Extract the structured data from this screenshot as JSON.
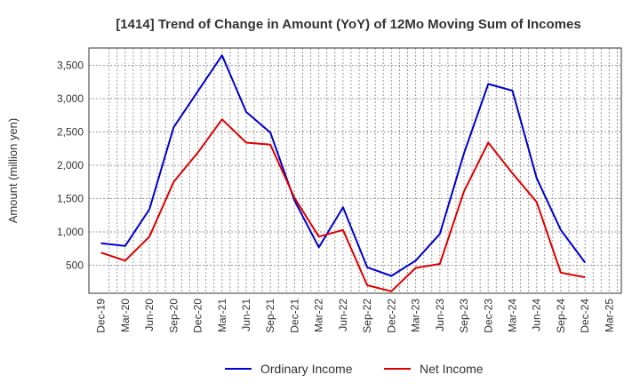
{
  "chart_data": {
    "type": "line",
    "title": "[1414]  Trend of Change in Amount (YoY) of 12Mo Moving Sum of Incomes",
    "xlabel": "",
    "ylabel": "Amount (million yen)",
    "categories": [
      "Dec-19",
      "Mar-20",
      "Jun-20",
      "Sep-20",
      "Dec-20",
      "Mar-21",
      "Jun-21",
      "Sep-21",
      "Dec-21",
      "Mar-22",
      "Jun-22",
      "Sep-22",
      "Dec-22",
      "Mar-23",
      "Jun-23",
      "Sep-23",
      "Dec-23",
      "Mar-24",
      "Jun-24",
      "Sep-24",
      "Dec-24",
      "Mar-25"
    ],
    "yticks": [
      500,
      1000,
      1500,
      2000,
      2500,
      3000,
      3500
    ],
    "ytick_labels": [
      "500",
      "1,000",
      "1,500",
      "2,000",
      "2,500",
      "3,000",
      "3,500"
    ],
    "ylim": [
      80,
      3760
    ],
    "series": [
      {
        "name": "Ordinary Income",
        "color": "#0000cc",
        "values": [
          830,
          790,
          1340,
          2570,
          3110,
          3650,
          2800,
          2490,
          1470,
          770,
          1370,
          470,
          340,
          570,
          970,
          2180,
          3220,
          3120,
          1810,
          1030,
          540,
          null
        ]
      },
      {
        "name": "Net Income",
        "color": "#dd0000",
        "values": [
          690,
          570,
          930,
          1750,
          2190,
          2690,
          2340,
          2310,
          1510,
          930,
          1030,
          200,
          110,
          460,
          520,
          1610,
          2340,
          1880,
          1450,
          390,
          320,
          null
        ]
      }
    ],
    "grid": true,
    "legend": "bottom-center"
  }
}
